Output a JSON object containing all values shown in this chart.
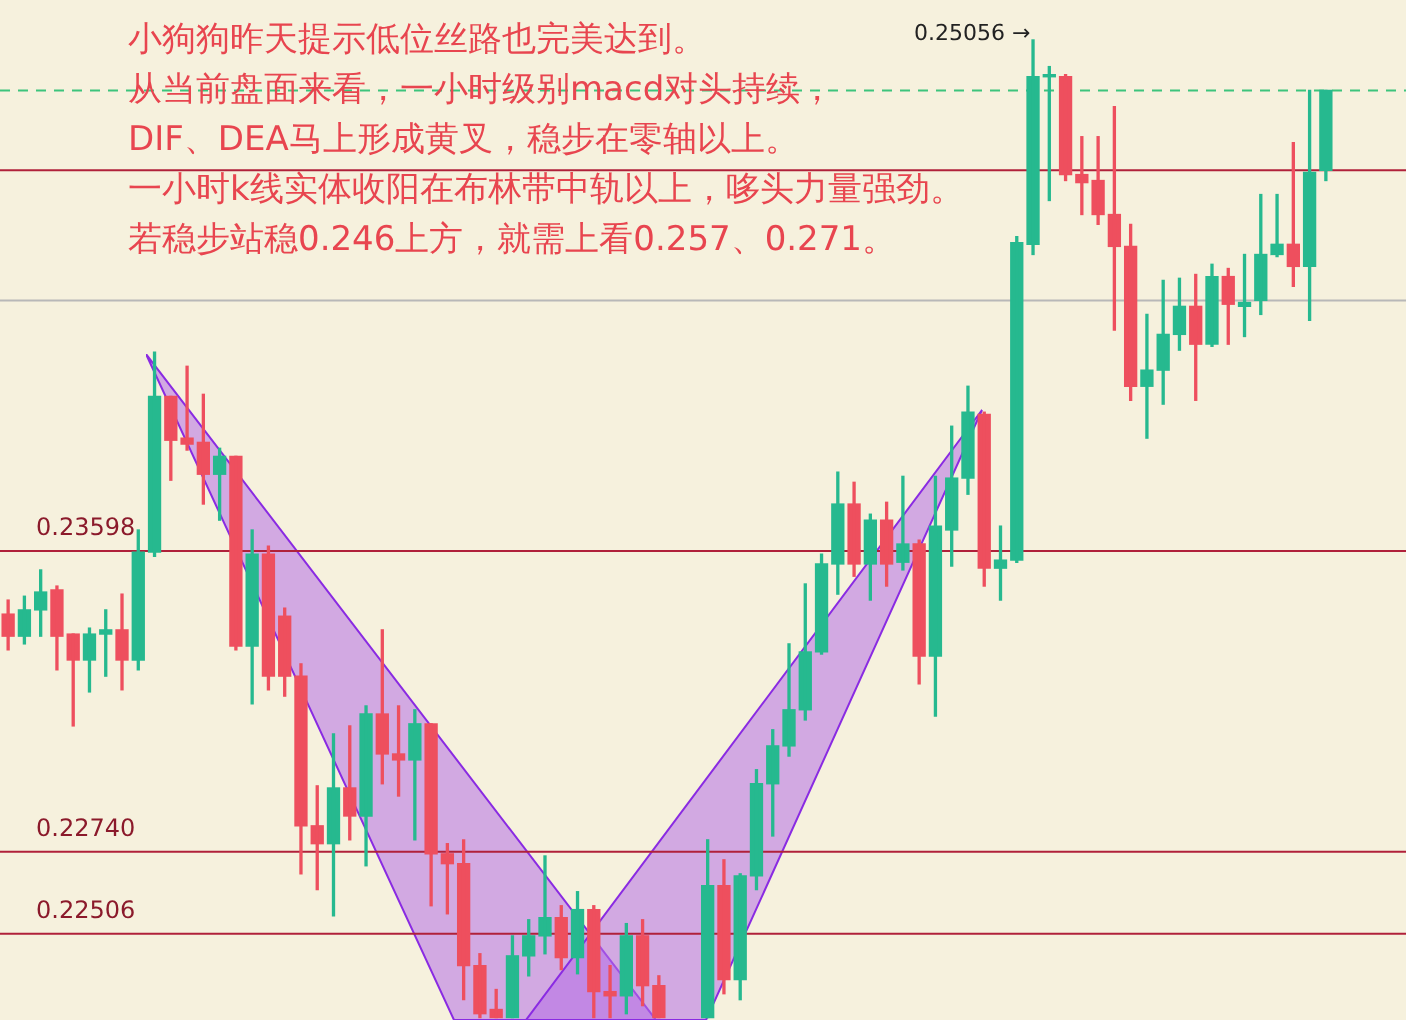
{
  "chart_data": {
    "type": "candlestick",
    "tick_labels": false,
    "categories": [
      null,
      null,
      null,
      null,
      null,
      null,
      null,
      null,
      null,
      null,
      null,
      null,
      null,
      null,
      null,
      null,
      null,
      null,
      null,
      null,
      null,
      null,
      null,
      null,
      null,
      null,
      null,
      null,
      null,
      null,
      null,
      null,
      null,
      null,
      null,
      null,
      null,
      null,
      null,
      null,
      null,
      null,
      null,
      null,
      null,
      null,
      null,
      null,
      null,
      null,
      null,
      null,
      null,
      null,
      null,
      null,
      null,
      null,
      null,
      null,
      null,
      null,
      null,
      null,
      null,
      null,
      null,
      null,
      null,
      null,
      null,
      null,
      null,
      null,
      null,
      null,
      null,
      null,
      null,
      null,
      null,
      null
    ],
    "ohlc": [
      [
        0.23418,
        0.23458,
        0.23316,
        0.23355
      ],
      [
        0.23355,
        0.23469,
        0.23333,
        0.2343
      ],
      [
        0.2343,
        0.23544,
        0.23355,
        0.23481
      ],
      [
        0.23487,
        0.23498,
        0.23259,
        0.23355
      ],
      [
        0.23361,
        0.23361,
        0.23099,
        0.23287
      ],
      [
        0.23287,
        0.23378,
        0.23196,
        0.23361
      ],
      [
        0.23361,
        0.2343,
        0.23241,
        0.23373
      ],
      [
        0.23373,
        0.23475,
        0.23202,
        0.23287
      ],
      [
        0.23287,
        0.23658,
        0.23259,
        0.23595
      ],
      [
        0.23595,
        0.24165,
        0.23583,
        0.24039
      ],
      [
        0.24039,
        0.24039,
        0.238,
        0.23914
      ],
      [
        0.2392,
        0.24125,
        0.23886,
        0.23903
      ],
      [
        0.23908,
        0.24045,
        0.23732,
        0.23817
      ],
      [
        0.23817,
        0.23891,
        0.23686,
        0.23868
      ],
      [
        0.23868,
        0.23868,
        0.23316,
        0.23327
      ],
      [
        0.23327,
        0.23658,
        0.23162,
        0.23589
      ],
      [
        0.23589,
        0.23612,
        0.23202,
        0.23241
      ],
      [
        0.23412,
        0.23435,
        0.23184,
        0.23241
      ],
      [
        0.23241,
        0.23276,
        0.22677,
        0.22814
      ],
      [
        0.22814,
        0.22928,
        0.22632,
        0.22763
      ],
      [
        0.22763,
        0.23076,
        0.22557,
        0.22922
      ],
      [
        0.22922,
        0.23099,
        0.22774,
        0.22842
      ],
      [
        0.22842,
        0.23156,
        0.227,
        0.23133
      ],
      [
        0.23133,
        0.23373,
        0.22934,
        0.23019
      ],
      [
        0.23019,
        0.23156,
        0.22899,
        0.23002
      ],
      [
        0.23002,
        0.23145,
        0.22774,
        0.23105
      ],
      [
        0.23105,
        0.23105,
        0.22586,
        0.22734
      ],
      [
        0.22734,
        0.22763,
        0.22563,
        0.22706
      ],
      [
        0.22706,
        0.22774,
        0.22318,
        0.22415
      ],
      [
        0.22415,
        0.22449,
        0.22267,
        0.22278
      ],
      [
        0.2229,
        0.22347,
        0.22267,
        0.22267
      ],
      [
        0.22267,
        0.225,
        0.22267,
        0.22443
      ],
      [
        0.22443,
        0.22546,
        0.22386,
        0.225
      ],
      [
        0.225,
        0.22728,
        0.22449,
        0.22552
      ],
      [
        0.22552,
        0.22586,
        0.22404,
        0.22438
      ],
      [
        0.22438,
        0.22626,
        0.22392,
        0.22575
      ],
      [
        0.22575,
        0.22586,
        0.22267,
        0.22341
      ],
      [
        0.22341,
        0.22415,
        0.22267,
        0.22329
      ],
      [
        0.22329,
        0.22535,
        0.22278,
        0.225
      ],
      [
        0.225,
        0.22546,
        0.22301,
        0.22358
      ],
      [
        0.22358,
        0.22386,
        0.22267,
        0.22267
      ],
      null,
      null,
      [
        0.22267,
        0.22774,
        0.22267,
        0.22643
      ],
      [
        0.22643,
        0.22717,
        0.22335,
        0.22375
      ],
      [
        0.22375,
        0.22677,
        0.22318,
        0.22671
      ],
      [
        0.22671,
        0.22974,
        0.22632,
        0.22934
      ],
      [
        0.22934,
        0.23088,
        0.22785,
        0.23042
      ],
      [
        0.23042,
        0.23333,
        0.23013,
        0.23145
      ],
      [
        0.23145,
        0.23504,
        0.23116,
        0.2331
      ],
      [
        0.2331,
        0.23589,
        0.23304,
        0.23561
      ],
      [
        0.23561,
        0.23823,
        0.23475,
        0.23732
      ],
      [
        0.23732,
        0.23794,
        0.23526,
        0.23561
      ],
      [
        0.23561,
        0.23703,
        0.23458,
        0.23686
      ],
      [
        0.23686,
        0.23737,
        0.23498,
        0.23561
      ],
      [
        0.23566,
        0.23811,
        0.23544,
        0.23618
      ],
      [
        0.23618,
        0.23629,
        0.23219,
        0.23298
      ],
      [
        0.23298,
        0.23811,
        0.23127,
        0.23669
      ],
      [
        0.23658,
        0.23954,
        0.23555,
        0.23806
      ],
      [
        0.23806,
        0.24068,
        0.2376,
        0.23994
      ],
      [
        0.23988,
        0.23994,
        0.23498,
        0.23549
      ],
      [
        0.23549,
        0.23669,
        0.23458,
        0.23572
      ],
      [
        0.23572,
        0.24495,
        0.23566,
        0.24478
      ],
      [
        0.24473,
        0.25056,
        0.24444,
        0.24951
      ],
      [
        0.24951,
        0.2498,
        0.24598,
        0.24957
      ],
      [
        0.24951,
        0.24957,
        0.24655,
        0.24672
      ],
      [
        0.24672,
        0.2478,
        0.24558,
        0.24649
      ],
      [
        0.24655,
        0.2478,
        0.2453,
        0.24558
      ],
      [
        0.24558,
        0.24866,
        0.24228,
        0.24467
      ],
      [
        0.24467,
        0.2453,
        0.24028,
        0.24068
      ],
      [
        0.24068,
        0.24273,
        0.2392,
        0.24114
      ],
      [
        0.24114,
        0.2437,
        0.24017,
        0.24216
      ],
      [
        0.24216,
        0.24376,
        0.24171,
        0.24296
      ],
      [
        0.24296,
        0.24387,
        0.24028,
        0.24188
      ],
      [
        0.24188,
        0.24416,
        0.24182,
        0.24381
      ],
      [
        0.24381,
        0.24404,
        0.24188,
        0.24302
      ],
      [
        0.24296,
        0.24444,
        0.2421,
        0.24307
      ],
      [
        0.24313,
        0.24615,
        0.24273,
        0.24444
      ],
      [
        0.24444,
        0.24615,
        0.24438,
        0.24473
      ],
      [
        0.24473,
        0.24763,
        0.24353,
        0.2441
      ],
      [
        0.2441,
        0.24912,
        0.24256,
        0.24678
      ],
      [
        0.24684,
        0.24912,
        0.24655,
        0.24912
      ]
    ],
    "colors": [
      "#ee4f5e",
      "#26b98f",
      "#26b98f",
      "#ee4f5e",
      "#ee4f5e",
      "#26b98f",
      "#26b98f",
      "#ee4f5e",
      "#26b98f",
      "#26b98f",
      "#ee4f5e",
      "#ee4f5e",
      "#ee4f5e",
      "#26b98f",
      "#ee4f5e",
      "#26b98f",
      "#ee4f5e",
      "#ee4f5e",
      "#ee4f5e",
      "#ee4f5e",
      "#26b98f",
      "#ee4f5e",
      "#26b98f",
      "#ee4f5e",
      "#ee4f5e",
      "#26b98f",
      "#ee4f5e",
      "#ee4f5e",
      "#ee4f5e",
      "#ee4f5e",
      "#ee4f5e",
      "#26b98f",
      "#26b98f",
      "#26b98f",
      "#ee4f5e",
      "#26b98f",
      "#ee4f5e",
      "#ee4f5e",
      "#26b98f",
      "#ee4f5e",
      "#ee4f5e",
      null,
      null,
      "#26b98f",
      "#ee4f5e",
      "#26b98f",
      "#26b98f",
      "#26b98f",
      "#26b98f",
      "#26b98f",
      "#26b98f",
      "#26b98f",
      "#ee4f5e",
      "#26b98f",
      "#ee4f5e",
      "#26b98f",
      "#ee4f5e",
      "#26b98f",
      "#26b98f",
      "#26b98f",
      "#ee4f5e",
      "#26b98f",
      "#26b98f",
      "#26b98f",
      "#26b98f",
      "#ee4f5e",
      "#ee4f5e",
      "#ee4f5e",
      "#ee4f5e",
      "#ee4f5e",
      "#26b98f",
      "#26b98f",
      "#26b98f",
      "#ee4f5e",
      "#26b98f",
      "#ee4f5e",
      "#26b98f",
      "#26b98f",
      "#26b98f",
      "#ee4f5e",
      "#26b98f",
      "#26b98f"
    ],
    "ylim": [
      0.2226,
      0.2517
    ],
    "ref_lines": [
      {
        "axis": "y",
        "value": 0.23598,
        "label": "0.23598",
        "color": "#b0213a"
      },
      {
        "axis": "y",
        "value": 0.2274,
        "label": "0.22740",
        "color": "#b0213a"
      },
      {
        "axis": "y",
        "value": 0.22506,
        "label": "0.22506",
        "color": "#b0213a"
      },
      {
        "axis": "y",
        "value": 0.24684,
        "color": "#b0213a"
      },
      {
        "axis": "y",
        "value": 0.24912,
        "color": "#3cc47c",
        "line_style": "dashed"
      },
      {
        "axis": "y",
        "value": 0.24313,
        "color": "#b8b8b8"
      }
    ],
    "annotations": [
      "小狗狗昨天提示低位丝路也完美达到。",
      "从当前盘面来看，一小时级别macd对头持续，",
      "DIF、DEA马上形成黄叉，稳步在零轴以上。",
      "一小时k线实体收阳在布林带中轨以上，哆头力量强劲。",
      "若稳步站稳0.246上方，就需上看0.257、0.271。",
      "0.25056 →"
    ]
  }
}
